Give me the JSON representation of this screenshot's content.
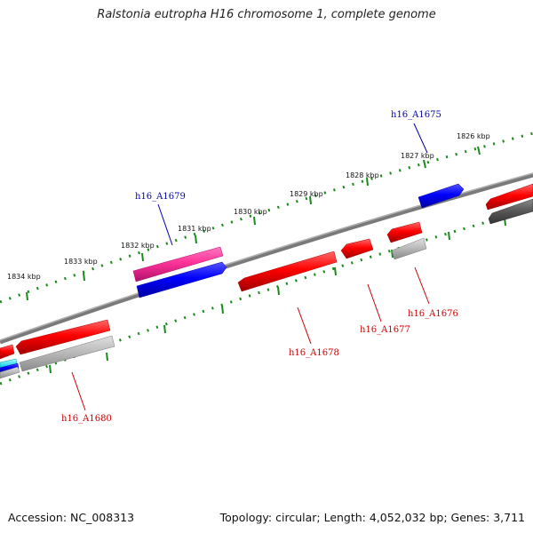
{
  "title": "Ralstonia eutropha H16 chromosome 1, complete genome",
  "accession": "Accession: NC_008313",
  "summary": "Topology: circular; Length: 4,052,032 bp; Genes: 3,711",
  "tick_labels": [
    "1826 kbp",
    "1827 kbp",
    "1828 kbp",
    "1829 kbp",
    "1830 kbp",
    "1831 kbp",
    "1832 kbp",
    "1833 kbp",
    "1834 kbp"
  ],
  "gene_labels": {
    "h16_A1675": "h16_A1675",
    "h16_A1676": "h16_A1676",
    "h16_A1677": "h16_A1677",
    "h16_A1678": "h16_A1678",
    "h16_A1679": "h16_A1679",
    "h16_A1680": "h16_A1680"
  },
  "colors": {
    "forward_gene": "#ff0000",
    "reverse_gene": "#0000ee",
    "rna_gene": "#ff3399",
    "pseudo_gene": "#bbbbbb",
    "backbone": "#808080",
    "ruler": "#1a8a1a",
    "label_forward": "#cc0000",
    "label_reverse": "#0000aa"
  }
}
